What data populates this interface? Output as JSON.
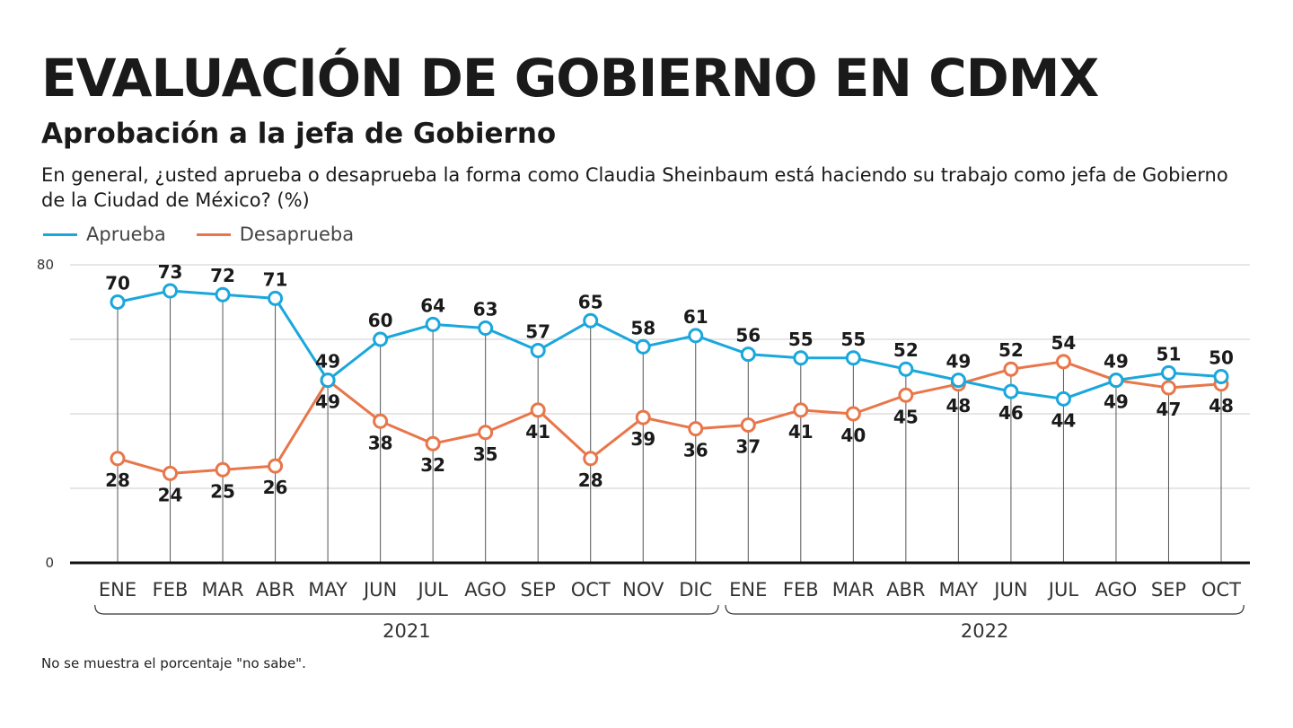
{
  "header": {
    "title": "EVALUACIÓN DE GOBIERNO EN CDMX",
    "subtitle": "Aprobación a la jefa de Gobierno",
    "question": "En general, ¿usted aprueba o desaprueba la forma como Claudia Sheinbaum está haciendo su trabajo como jefa de Gobierno de la Ciudad de México? (%)"
  },
  "legend": {
    "aprueba": "Aprueba",
    "desaprueba": "Desaprueba"
  },
  "footnote": "No se muestra el porcentaje \"no sabe\".",
  "colors": {
    "aprueba": "#1aa7dc",
    "desaprueba": "#e8764a",
    "axis": "#111111",
    "grid": "#cccccc"
  },
  "chart_data": {
    "type": "line",
    "categories": [
      "ENE",
      "FEB",
      "MAR",
      "ABR",
      "MAY",
      "JUN",
      "JUL",
      "AGO",
      "SEP",
      "OCT",
      "NOV",
      "DIC",
      "ENE",
      "FEB",
      "MAR",
      "ABR",
      "MAY",
      "JUN",
      "JUL",
      "AGO",
      "SEP",
      "OCT"
    ],
    "groups": [
      {
        "label": "2021",
        "start": 0,
        "end": 11
      },
      {
        "label": "2022",
        "start": 12,
        "end": 21
      }
    ],
    "series": [
      {
        "key": "aprueba",
        "name": "Aprueba",
        "values": [
          70,
          73,
          72,
          71,
          49,
          60,
          64,
          63,
          57,
          65,
          58,
          61,
          56,
          55,
          55,
          52,
          49,
          46,
          44,
          49,
          51,
          50
        ],
        "labels": [
          "70",
          "73",
          "72",
          "71",
          "49",
          "60",
          "64",
          "63",
          "57",
          "65",
          "58",
          "61",
          "56",
          "55",
          "55",
          "52",
          "49",
          "46",
          "44",
          "49",
          "51",
          "50"
        ],
        "label_pos": [
          "above",
          "above",
          "above",
          "above",
          "above",
          "above",
          "above",
          "above",
          "above",
          "above",
          "above",
          "above",
          "above",
          "above",
          "above",
          "above",
          "above",
          "below",
          "below",
          "above",
          "above",
          "above"
        ]
      },
      {
        "key": "desaprueba",
        "name": "Desaprueba",
        "values": [
          28,
          24,
          25,
          26,
          49,
          38,
          32,
          35,
          41,
          28,
          39,
          36,
          37,
          41,
          40,
          45,
          48,
          52,
          54,
          49,
          47,
          48
        ],
        "labels": [
          "28",
          "24",
          "25",
          "26",
          "49",
          "38",
          "32",
          "35",
          "41",
          "28",
          "39",
          "36",
          "37",
          "41",
          "40",
          "45",
          "48",
          "52",
          "54",
          "49",
          "47",
          "48"
        ],
        "label_pos": [
          "below",
          "below",
          "below",
          "below",
          "below",
          "below",
          "below",
          "below",
          "below",
          "below",
          "below",
          "below",
          "below",
          "below",
          "below",
          "below",
          "below",
          "above",
          "above",
          "below",
          "below",
          "below"
        ]
      }
    ],
    "ylim": [
      0,
      80
    ],
    "yticks": [
      "0",
      "80"
    ],
    "gridlines": [
      20,
      40,
      60,
      80
    ],
    "legend_position": "top-left"
  }
}
